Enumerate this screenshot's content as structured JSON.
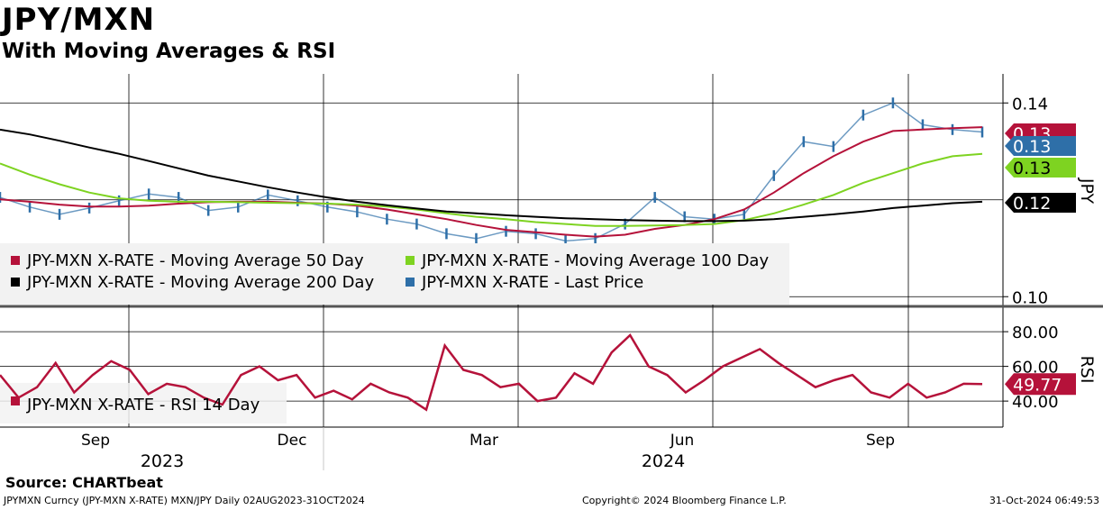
{
  "header": {
    "title": "JPY/MXN",
    "subtitle": "With Moving Averages & RSI"
  },
  "footer": {
    "source": "Source: CHARTbeat",
    "left": "JPYMXN Curncy (JPY-MXN X-RATE) MXN/JPY  Daily 02AUG2023-31OCT2024",
    "center": "Copyright© 2024 Bloomberg Finance L.P.",
    "right": "31-Oct-2024 06:49:53"
  },
  "colors": {
    "ma50": "#b5123a",
    "ma100": "#7ed321",
    "ma200": "#000000",
    "last_price": "#2e6fa8",
    "rsi": "#b5123a"
  },
  "chart_data": [
    {
      "type": "line",
      "panel": "price",
      "ylabel": "JPY",
      "yticks": [
        0.1,
        0.14
      ],
      "ytick_labels": [
        "0.10",
        "0.14"
      ],
      "ylim": [
        0.098,
        0.146
      ],
      "x_months": [
        "Sep",
        "Dec",
        "Mar",
        "Jun",
        "Sep"
      ],
      "x_years": [
        "2023",
        "2024"
      ],
      "x_dates": [
        "2023-08-02",
        "2023-08-16",
        "2023-08-30",
        "2023-09-13",
        "2023-09-27",
        "2023-10-11",
        "2023-10-25",
        "2023-11-08",
        "2023-11-22",
        "2023-12-06",
        "2023-12-20",
        "2024-01-03",
        "2024-01-17",
        "2024-01-31",
        "2024-02-14",
        "2024-02-28",
        "2024-03-13",
        "2024-03-27",
        "2024-04-10",
        "2024-04-24",
        "2024-05-08",
        "2024-05-22",
        "2024-06-05",
        "2024-06-19",
        "2024-07-03",
        "2024-07-17",
        "2024-07-31",
        "2024-08-14",
        "2024-08-28",
        "2024-09-11",
        "2024-09-25",
        "2024-10-09",
        "2024-10-23",
        "2024-10-31"
      ],
      "legend": "bottom-left",
      "series": [
        {
          "name": "JPY-MXN X-RATE - Moving Average 50 Day",
          "color": "#b5123a",
          "values": [
            0.1201,
            0.1196,
            0.119,
            0.1186,
            0.1186,
            0.1188,
            0.1192,
            0.1195,
            0.1196,
            0.1196,
            0.1194,
            0.1192,
            0.1188,
            0.118,
            0.117,
            0.116,
            0.1148,
            0.1138,
            0.1133,
            0.1128,
            0.1124,
            0.1128,
            0.114,
            0.1148,
            0.116,
            0.118,
            0.1215,
            0.1255,
            0.129,
            0.132,
            0.1342,
            0.1345,
            0.1348,
            0.135
          ]
        },
        {
          "name": "JPY-MXN X-RATE - Moving Average 100 Day",
          "color": "#7ed321",
          "values": [
            0.1275,
            0.1252,
            0.1232,
            0.1215,
            0.1203,
            0.1198,
            0.1196,
            0.1196,
            0.1195,
            0.1194,
            0.1193,
            0.1192,
            0.119,
            0.1186,
            0.118,
            0.1172,
            0.1165,
            0.116,
            0.1154,
            0.115,
            0.1146,
            0.1146,
            0.1147,
            0.1148,
            0.115,
            0.1158,
            0.1172,
            0.119,
            0.121,
            0.1235,
            0.1255,
            0.1275,
            0.129,
            0.1295
          ]
        },
        {
          "name": "JPY-MXN X-RATE - Moving Average 200 Day",
          "color": "#000000",
          "values": [
            0.1345,
            0.1335,
            0.1322,
            0.1308,
            0.1295,
            0.128,
            0.1265,
            0.125,
            0.1238,
            0.1226,
            0.1215,
            0.1205,
            0.1196,
            0.1189,
            0.1182,
            0.1176,
            0.1172,
            0.1168,
            0.1165,
            0.1162,
            0.116,
            0.1158,
            0.1157,
            0.1156,
            0.1156,
            0.1157,
            0.116,
            0.1165,
            0.117,
            0.1176,
            0.1183,
            0.1188,
            0.1193,
            0.1196
          ]
        },
        {
          "name": "JPY-MXN X-RATE - Last Price",
          "color": "#2e6fa8",
          "values": [
            0.1205,
            0.1185,
            0.117,
            0.1183,
            0.1198,
            0.1212,
            0.1205,
            0.1178,
            0.1185,
            0.121,
            0.1198,
            0.1185,
            0.1175,
            0.116,
            0.115,
            0.113,
            0.112,
            0.1135,
            0.113,
            0.1115,
            0.112,
            0.115,
            0.1205,
            0.1165,
            0.116,
            0.117,
            0.125,
            0.132,
            0.131,
            0.1375,
            0.14,
            0.1355,
            0.1345,
            0.134
          ]
        }
      ],
      "value_labels": [
        {
          "text": "0.13",
          "color": "#b5123a"
        },
        {
          "text": "0.13",
          "color": "#2e6fa8"
        },
        {
          "text": "0.13",
          "color": "#7ed321"
        },
        {
          "text": "0.12",
          "color": "#000000"
        }
      ]
    },
    {
      "type": "line",
      "panel": "rsi",
      "ylabel": "RSI",
      "yticks": [
        40,
        60,
        80
      ],
      "ytick_labels": [
        "40.00",
        "60.00",
        "80.00"
      ],
      "ylim": [
        25,
        92
      ],
      "legend": "bottom-left",
      "series": [
        {
          "name": "JPY-MXN X-RATE - RSI 14 Day",
          "color": "#b5123a",
          "values": [
            55,
            42,
            48,
            62,
            45,
            55,
            63,
            58,
            44,
            50,
            48,
            42,
            38,
            55,
            60,
            52,
            55,
            42,
            46,
            41,
            50,
            45,
            42,
            35,
            72,
            58,
            55,
            48,
            50,
            40,
            42,
            56,
            50,
            68,
            78,
            60,
            55,
            45,
            52,
            60,
            65,
            70,
            62,
            55,
            48,
            52,
            55,
            45,
            42,
            50,
            42,
            45,
            50,
            49.77
          ]
        }
      ],
      "value_labels": [
        {
          "text": "49.77",
          "color": "#b5123a"
        }
      ]
    }
  ]
}
